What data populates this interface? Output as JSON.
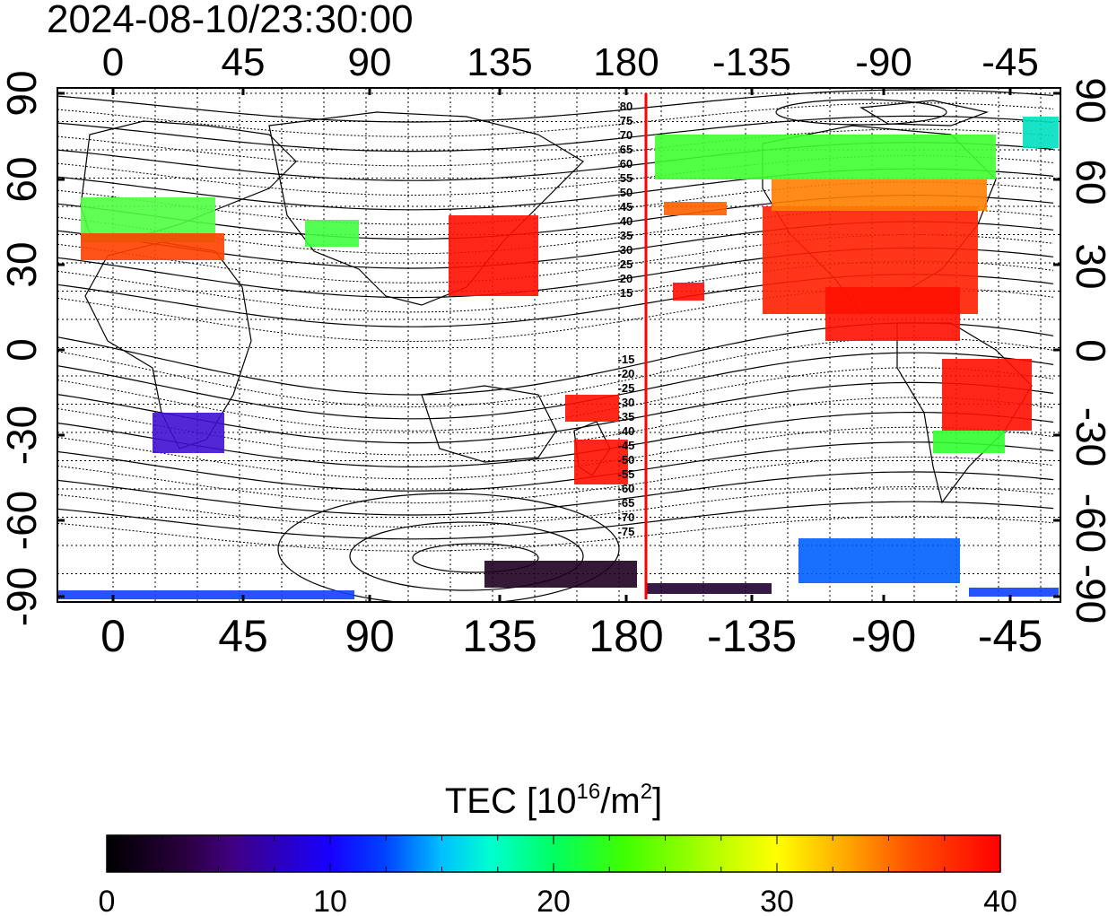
{
  "timestamp": "2024-08-10/23:30:00",
  "map": {
    "lon_ticks": [
      "0",
      "45",
      "90",
      "135",
      "180",
      "-135",
      "-90",
      "-45"
    ],
    "lat_ticks_left": [
      "90",
      "60",
      "30",
      "0",
      "-30",
      "-60",
      "-90"
    ],
    "lat_ticks_right": [
      "90",
      "60",
      "30",
      "0",
      "-30",
      "-60",
      "-90"
    ],
    "contour_labels_north": [
      "80",
      "75",
      "70",
      "65",
      "60",
      "55",
      "50",
      "45",
      "40",
      "35",
      "30",
      "25",
      "20",
      "15"
    ],
    "contour_labels_south": [
      "-15",
      "-20",
      "-25",
      "-30",
      "-35",
      "-40",
      "-45",
      "-50",
      "-55",
      "-60",
      "-65",
      "-70",
      "-75"
    ],
    "terminator_color": "#ff0000"
  },
  "colorbar": {
    "title_prefix": "TEC  [10",
    "title_exp1": "16",
    "title_mid": "/m",
    "title_exp2": "2",
    "title_suffix": "]",
    "ticks": [
      "0",
      "10",
      "20",
      "30",
      "40"
    ],
    "range": [
      0,
      40
    ]
  }
}
